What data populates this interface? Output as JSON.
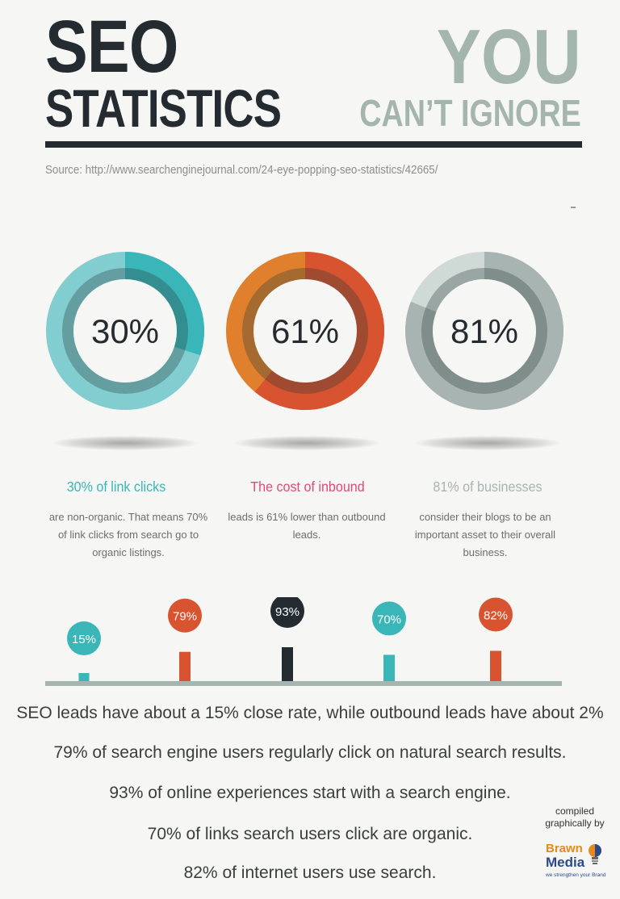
{
  "header": {
    "title_line1": "SEO",
    "title_line2": "STATISTICS",
    "subtitle_line1": "YOU",
    "subtitle_line2": "CAN’T IGNORE",
    "source": "Source: http://www.searchenginejournal.com/24-eye-popping-seo-statistics/42665/"
  },
  "colors": {
    "dark": "#252c31",
    "teal": "#3ab5b8",
    "teal_light": "#82cdd0",
    "orange": "#e0802c",
    "red": "#d8532f",
    "gray": "#a8b4b1",
    "gray_light": "#cfd9d5",
    "pink": "#e04a7a"
  },
  "chart_data": [
    {
      "type": "pie",
      "charts": [
        {
          "label": "30%",
          "value": 30,
          "title": "30% of link clicks",
          "body": "are non-organic. That means 70% of link clicks from search  go to organic listings.",
          "color": "#3ab5b8",
          "rest_color": "#82cdd0",
          "title_color": "#3ab5b8"
        },
        {
          "label": "61%",
          "value": 61,
          "title": "The cost of inbound",
          "body": "leads is 61% lower than outbound leads.",
          "color": "#d8532f",
          "rest_color": "#e0802c",
          "title_color": "#e04a7a"
        },
        {
          "label": "81%",
          "value": 81,
          "title": "81% of businesses",
          "body": "consider their blogs to be an important asset to their overall business.",
          "color": "#a8b4b1",
          "rest_color": "#cfd9d5",
          "title_color": "#a8b4b1"
        }
      ]
    },
    {
      "type": "bar",
      "categories": [
        "15%",
        "79%",
        "93%",
        "70%",
        "82%"
      ],
      "values": [
        15,
        79,
        93,
        70,
        82
      ],
      "colors": [
        "#3ab5b8",
        "#d8532f",
        "#252c31",
        "#3ab5b8",
        "#d8532f"
      ],
      "ylim": [
        0,
        100
      ]
    }
  ],
  "facts": [
    "SEO leads have about a 15% close rate, while outbound leads have about 2%",
    "79% of search engine users regularly click on natural search results.",
    "93% of online experiences start with a search engine.",
    "70% of links search users click are organic.",
    "82% of internet users use search."
  ],
  "credit": {
    "text": "compiled graphically by",
    "brand1": "Brawn",
    "brand2": "Media",
    "tagline": "we strengthen your Brand"
  }
}
